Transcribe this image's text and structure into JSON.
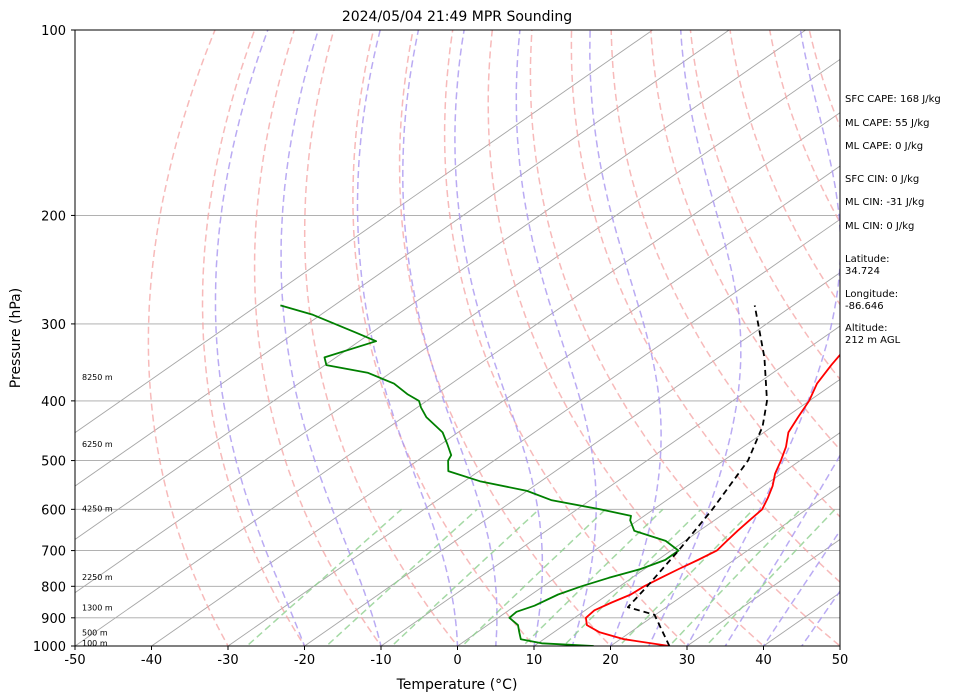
{
  "chart_data": {
    "type": "line",
    "title": "2024/05/04 21:49 MPR Sounding",
    "xlabel": "Temperature (°C)",
    "ylabel": "Pressure (hPa)",
    "xlim": [
      -50,
      50
    ],
    "ylim": [
      1000,
      100
    ],
    "y_scale": "log",
    "x_ticks": [
      -50,
      -40,
      -30,
      -20,
      -10,
      0,
      10,
      20,
      30,
      40,
      50
    ],
    "y_ticks": [
      1000,
      900,
      800,
      700,
      600,
      500,
      400,
      300,
      200,
      100
    ],
    "skew_ticks": [
      -90,
      -80,
      -70,
      -60,
      -50,
      -40,
      -30,
      -20,
      -10,
      0,
      10,
      20,
      30,
      40,
      50,
      60,
      70,
      80,
      90,
      100
    ],
    "dry_adiabat_thetas_c": [
      -30,
      -20,
      -10,
      0,
      10,
      20,
      30,
      40,
      50,
      60,
      70,
      80,
      90,
      100,
      110,
      120,
      130,
      140,
      150,
      160,
      170,
      180,
      190,
      200
    ],
    "moist_adiabat_starts_c": [
      -20,
      -10,
      0,
      5,
      10,
      15,
      20,
      25,
      30,
      35,
      40,
      45
    ],
    "mixing_ratios_gkg": [
      0.4,
      1,
      2,
      4,
      7,
      10,
      16,
      24,
      32
    ],
    "series": [
      {
        "color": "#ff0000",
        "points": [
          [
            27.7,
            1000
          ],
          [
            20.5,
            975
          ],
          [
            16.0,
            950
          ],
          [
            13.0,
            925
          ],
          [
            11.5,
            900
          ],
          [
            11.2,
            875
          ],
          [
            12.0,
            850
          ],
          [
            13.0,
            825
          ],
          [
            13.2,
            800
          ],
          [
            13.8,
            775
          ],
          [
            14.5,
            750
          ],
          [
            15.3,
            725
          ],
          [
            16.0,
            700
          ],
          [
            15.5,
            675
          ],
          [
            15.0,
            650
          ],
          [
            14.6,
            625
          ],
          [
            14.2,
            600
          ],
          [
            12.8,
            575
          ],
          [
            11.2,
            550
          ],
          [
            9.2,
            525
          ],
          [
            7.5,
            500
          ],
          [
            5.6,
            475
          ],
          [
            3.2,
            450
          ],
          [
            1.6,
            425
          ],
          [
            0.0,
            400
          ],
          [
            -2.2,
            375
          ],
          [
            -3.8,
            350
          ],
          [
            -5.3,
            325
          ],
          [
            -7.2,
            300
          ],
          [
            -9.5,
            280
          ]
        ]
      },
      {
        "color": "#008000",
        "points": [
          [
            17.8,
            1000
          ],
          [
            10.5,
            990
          ],
          [
            7.0,
            975
          ],
          [
            5.5,
            950
          ],
          [
            4.0,
            925
          ],
          [
            1.5,
            900
          ],
          [
            1.3,
            880
          ],
          [
            2.5,
            860
          ],
          [
            3.5,
            825
          ],
          [
            5.0,
            800
          ],
          [
            7.0,
            775
          ],
          [
            9.5,
            750
          ],
          [
            11.0,
            725
          ],
          [
            11.0,
            700
          ],
          [
            7.5,
            675
          ],
          [
            1.5,
            650
          ],
          [
            -1.0,
            625
          ],
          [
            -1.7,
            615
          ],
          [
            -7.0,
            600
          ],
          [
            -15.0,
            580
          ],
          [
            -20.0,
            560
          ],
          [
            -28.0,
            540
          ],
          [
            -34.0,
            520
          ],
          [
            -36.0,
            500
          ],
          [
            -36.6,
            490
          ],
          [
            -39.2,
            470
          ],
          [
            -42.0,
            450
          ],
          [
            -47.0,
            425
          ],
          [
            -49.5,
            410
          ],
          [
            -51.0,
            400
          ],
          [
            -53.8,
            390
          ],
          [
            -57.5,
            375
          ],
          [
            -63.0,
            360
          ],
          [
            -69.8,
            350
          ],
          [
            -71.5,
            340
          ],
          [
            -67.8,
            320
          ],
          [
            -72.0,
            310
          ],
          [
            -81.0,
            290
          ],
          [
            -87.0,
            280
          ]
        ]
      },
      {
        "color": "#000000",
        "dashed": true,
        "points": [
          [
            27.7,
            1000
          ],
          [
            19.9,
            890
          ],
          [
            15.0,
            865
          ],
          [
            13.6,
            800
          ],
          [
            11.0,
            700
          ],
          [
            7.7,
            600
          ],
          [
            3.2,
            500
          ],
          [
            -1.3,
            440
          ],
          [
            -5.5,
            400
          ],
          [
            -14.0,
            340
          ],
          [
            -25.0,
            280
          ]
        ]
      }
    ],
    "height_labels": [
      {
        "text": "100 m",
        "pressure": 988
      },
      {
        "text": "500 m",
        "pressure": 951
      },
      {
        "text": "1300 m",
        "pressure": 866
      },
      {
        "text": "2250 m",
        "pressure": 773
      },
      {
        "text": "4250 m",
        "pressure": 598
      },
      {
        "text": "6250 m",
        "pressure": 470
      },
      {
        "text": "8250 m",
        "pressure": 366
      }
    ],
    "annotations": {
      "sfc_cape": "SFC CAPE: 168 J/kg",
      "ml_cape": "ML CAPE: 55 J/kg",
      "mu_cape": "ML CAPE: 0 J/kg",
      "sfc_cin": "SFC CIN: 0 J/kg",
      "ml_cin": "ML CIN: -31 J/kg",
      "mu_cin": "ML CIN: 0 J/kg",
      "latitude_label": "Latitude:",
      "latitude_value": "34.724",
      "longitude_label": "Longitude:",
      "longitude_value": "-86.646",
      "altitude_label": "Altitude:",
      "altitude_value": "212 m AGL"
    },
    "grid": true,
    "colors": {
      "temperature": "#ff0000",
      "dewpoint": "#008000",
      "parcel": "#000000",
      "isotherm": "#a6a6a6",
      "isobar": "#a6a6a6",
      "dry_adiabat": "#f4a3a3",
      "moist_adiabat": "#a996f0",
      "mixing_ratio": "#8fcf8f"
    }
  }
}
